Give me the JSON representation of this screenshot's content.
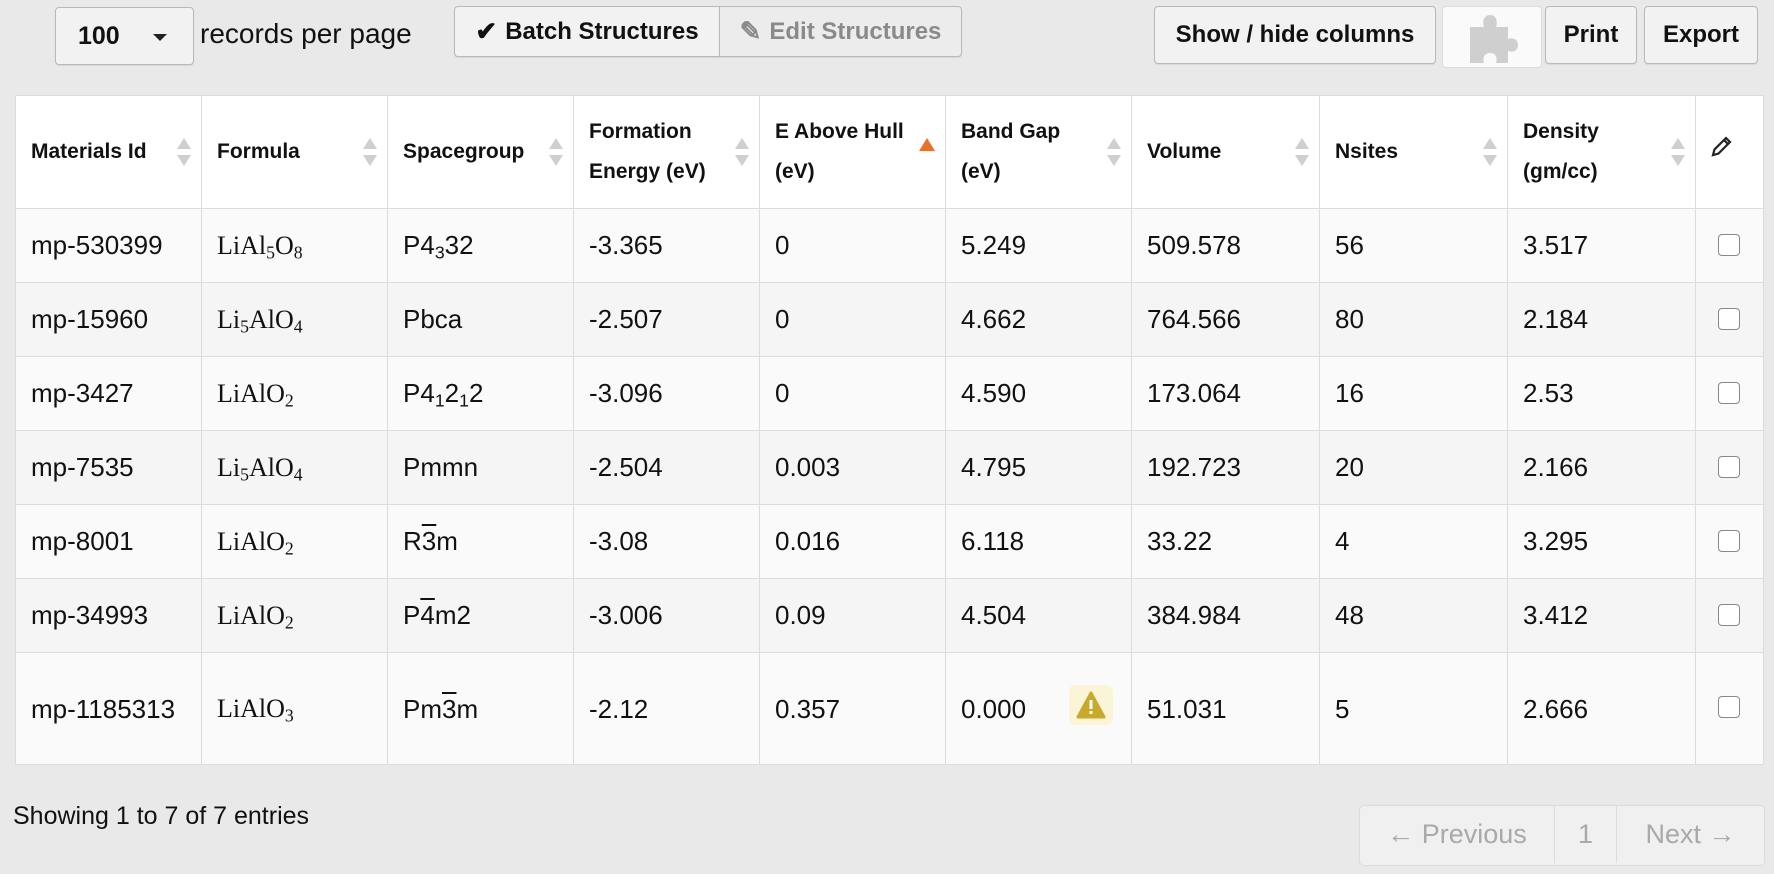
{
  "toolbar": {
    "page_size": "100",
    "records_label": "records per page",
    "batch_label": "Batch Structures",
    "edit_label": "Edit Structures",
    "show_hide_label": "Show / hide columns",
    "print_label": "Print",
    "export_label": "Export"
  },
  "table": {
    "headers": {
      "materials_id": "Materials Id",
      "formula": "Formula",
      "spacegroup": "Spacegroup",
      "formation_energy_1": "Formation",
      "formation_energy_2": "Energy (eV)",
      "e_above_hull_1": "E Above Hull",
      "e_above_hull_2": "(eV)",
      "band_gap_1": "Band Gap",
      "band_gap_2": "(eV)",
      "volume": "Volume",
      "nsites": "Nsites",
      "density_1": "Density",
      "density_2": "(gm/cc)"
    },
    "rows": [
      {
        "id": "mp-530399",
        "formula": [
          [
            "LiAl",
            ""
          ],
          [
            "5",
            "sub"
          ],
          [
            "O",
            ""
          ],
          [
            "8",
            "sub"
          ]
        ],
        "spacegroup": [
          [
            "P4",
            ""
          ],
          [
            "3",
            "sub"
          ],
          [
            "32",
            ""
          ]
        ],
        "formation_energy": "-3.365",
        "e_above_hull": "0",
        "band_gap": "5.249",
        "volume": "509.578",
        "nsites": "56",
        "density": "3.517"
      },
      {
        "id": "mp-15960",
        "formula": [
          [
            "Li",
            ""
          ],
          [
            "5",
            "sub"
          ],
          [
            "AlO",
            ""
          ],
          [
            "4",
            "sub"
          ]
        ],
        "spacegroup": [
          [
            "Pbca",
            ""
          ]
        ],
        "formation_energy": "-2.507",
        "e_above_hull": "0",
        "band_gap": "4.662",
        "volume": "764.566",
        "nsites": "80",
        "density": "2.184"
      },
      {
        "id": "mp-3427",
        "formula": [
          [
            "LiAlO",
            ""
          ],
          [
            "2",
            "sub"
          ]
        ],
        "spacegroup": [
          [
            "P4",
            ""
          ],
          [
            "1",
            "sub"
          ],
          [
            "2",
            ""
          ],
          [
            "1",
            "sub"
          ],
          [
            "2",
            ""
          ]
        ],
        "formation_energy": "-3.096",
        "e_above_hull": "0",
        "band_gap": "4.590",
        "volume": "173.064",
        "nsites": "16",
        "density": "2.53"
      },
      {
        "id": "mp-7535",
        "formula": [
          [
            "Li",
            ""
          ],
          [
            "5",
            "sub"
          ],
          [
            "AlO",
            ""
          ],
          [
            "4",
            "sub"
          ]
        ],
        "spacegroup": [
          [
            "Pmmn",
            ""
          ]
        ],
        "formation_energy": "-2.504",
        "e_above_hull": "0.003",
        "band_gap": "4.795",
        "volume": "192.723",
        "nsites": "20",
        "density": "2.166"
      },
      {
        "id": "mp-8001",
        "formula": [
          [
            "LiAlO",
            ""
          ],
          [
            "2",
            "sub"
          ]
        ],
        "spacegroup": [
          [
            "R",
            ""
          ],
          [
            "3",
            "ov"
          ],
          [
            "m",
            ""
          ]
        ],
        "formation_energy": "-3.08",
        "e_above_hull": "0.016",
        "band_gap": "6.118",
        "volume": "33.22",
        "nsites": "4",
        "density": "3.295"
      },
      {
        "id": "mp-34993",
        "formula": [
          [
            "LiAlO",
            ""
          ],
          [
            "2",
            "sub"
          ]
        ],
        "spacegroup": [
          [
            "P",
            ""
          ],
          [
            "4",
            "ov"
          ],
          [
            "m2",
            ""
          ]
        ],
        "formation_energy": "-3.006",
        "e_above_hull": "0.09",
        "band_gap": "4.504",
        "volume": "384.984",
        "nsites": "48",
        "density": "3.412"
      },
      {
        "id": "mp-1185313",
        "formula": [
          [
            "LiAlO",
            ""
          ],
          [
            "3",
            "sub"
          ]
        ],
        "spacegroup": [
          [
            "Pm",
            ""
          ],
          [
            "3",
            "ov"
          ],
          [
            "m",
            ""
          ]
        ],
        "formation_energy": "-2.12",
        "e_above_hull": "0.357",
        "band_gap": "0.000",
        "volume": "51.031",
        "nsites": "5",
        "density": "2.666",
        "warning": true
      }
    ]
  },
  "info": {
    "showing": "Showing 1 to 7 of 7 entries"
  },
  "pagination": {
    "previous": "← Previous",
    "page": "1",
    "next": "Next →"
  },
  "colors": {
    "sort_active": "#e8722b",
    "warning_icon": "#c9a92b"
  }
}
